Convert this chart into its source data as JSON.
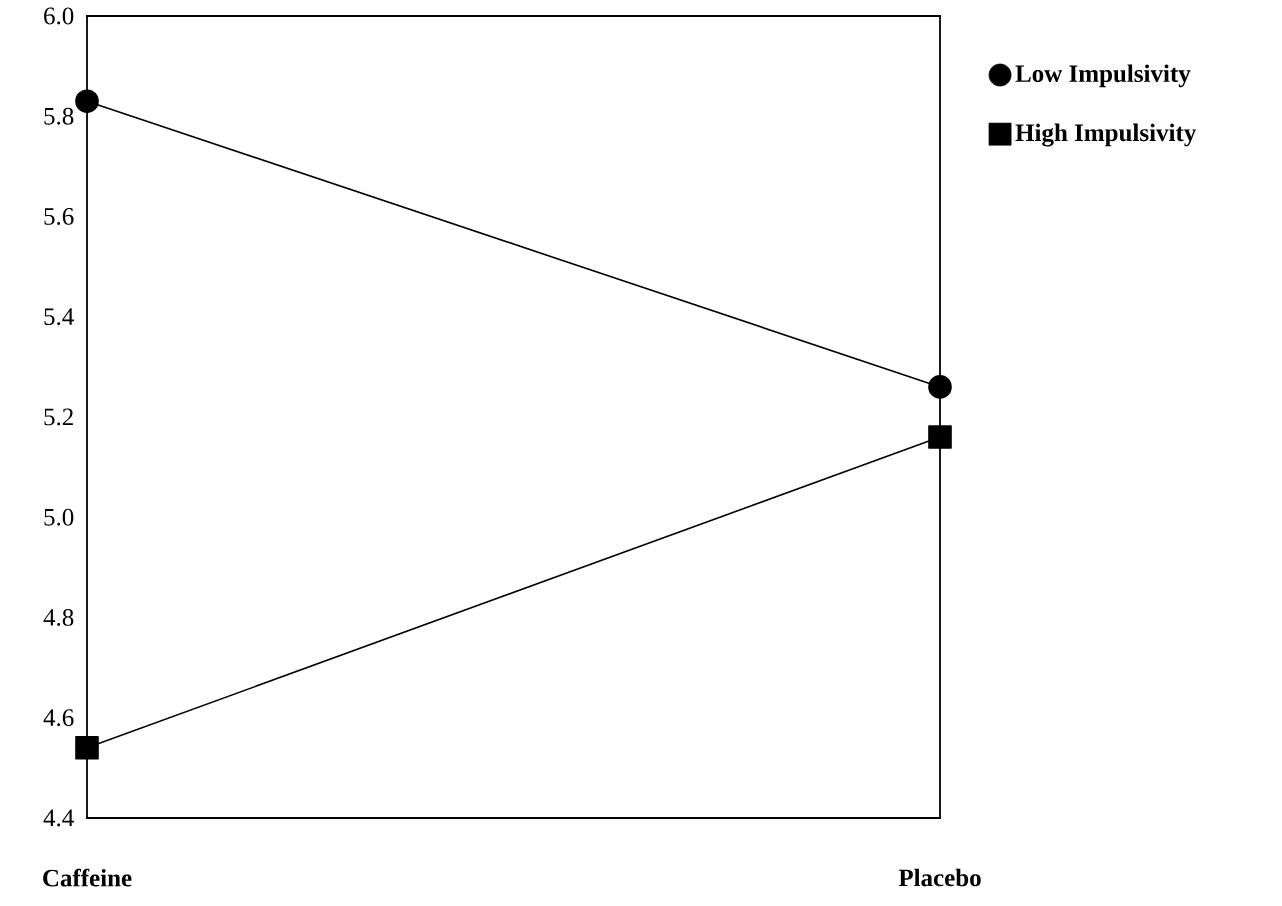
{
  "chart_data": {
    "type": "line",
    "categories": [
      "Caffeine",
      "Placebo"
    ],
    "series": [
      {
        "name": "Low Impulsivity",
        "color": "#000000",
        "marker": "circle",
        "values": [
          5.83,
          5.26
        ]
      },
      {
        "name": "High Impulsivity",
        "color": "#000000",
        "marker": "square",
        "values": [
          4.54,
          5.16
        ]
      }
    ],
    "ylim": [
      4.4,
      6.0
    ],
    "yticks": [
      {
        "value": 4.4,
        "label": "4.4"
      },
      {
        "value": 4.6,
        "label": "4.6"
      },
      {
        "value": 4.8,
        "label": "4.8"
      },
      {
        "value": 5.0,
        "label": "5.0"
      },
      {
        "value": 5.2,
        "label": "5.2"
      },
      {
        "value": 5.4,
        "label": "5.4"
      },
      {
        "value": 5.6,
        "label": "5.6"
      },
      {
        "value": 5.8,
        "label": "5.8"
      },
      {
        "value": 6.0,
        "label": "6.0"
      }
    ],
    "legend": "right"
  }
}
